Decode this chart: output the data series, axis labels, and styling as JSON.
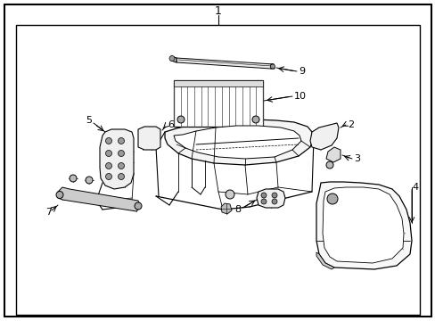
{
  "bg": "#ffffff",
  "lc": "#000000",
  "fig_w": 4.89,
  "fig_h": 3.6,
  "dpi": 100,
  "label1": "1",
  "label2": "2",
  "label3": "3",
  "label4": "4",
  "label5": "5",
  "label6": "6",
  "label7": "7",
  "label8": "8",
  "label9": "9",
  "label10": "10"
}
